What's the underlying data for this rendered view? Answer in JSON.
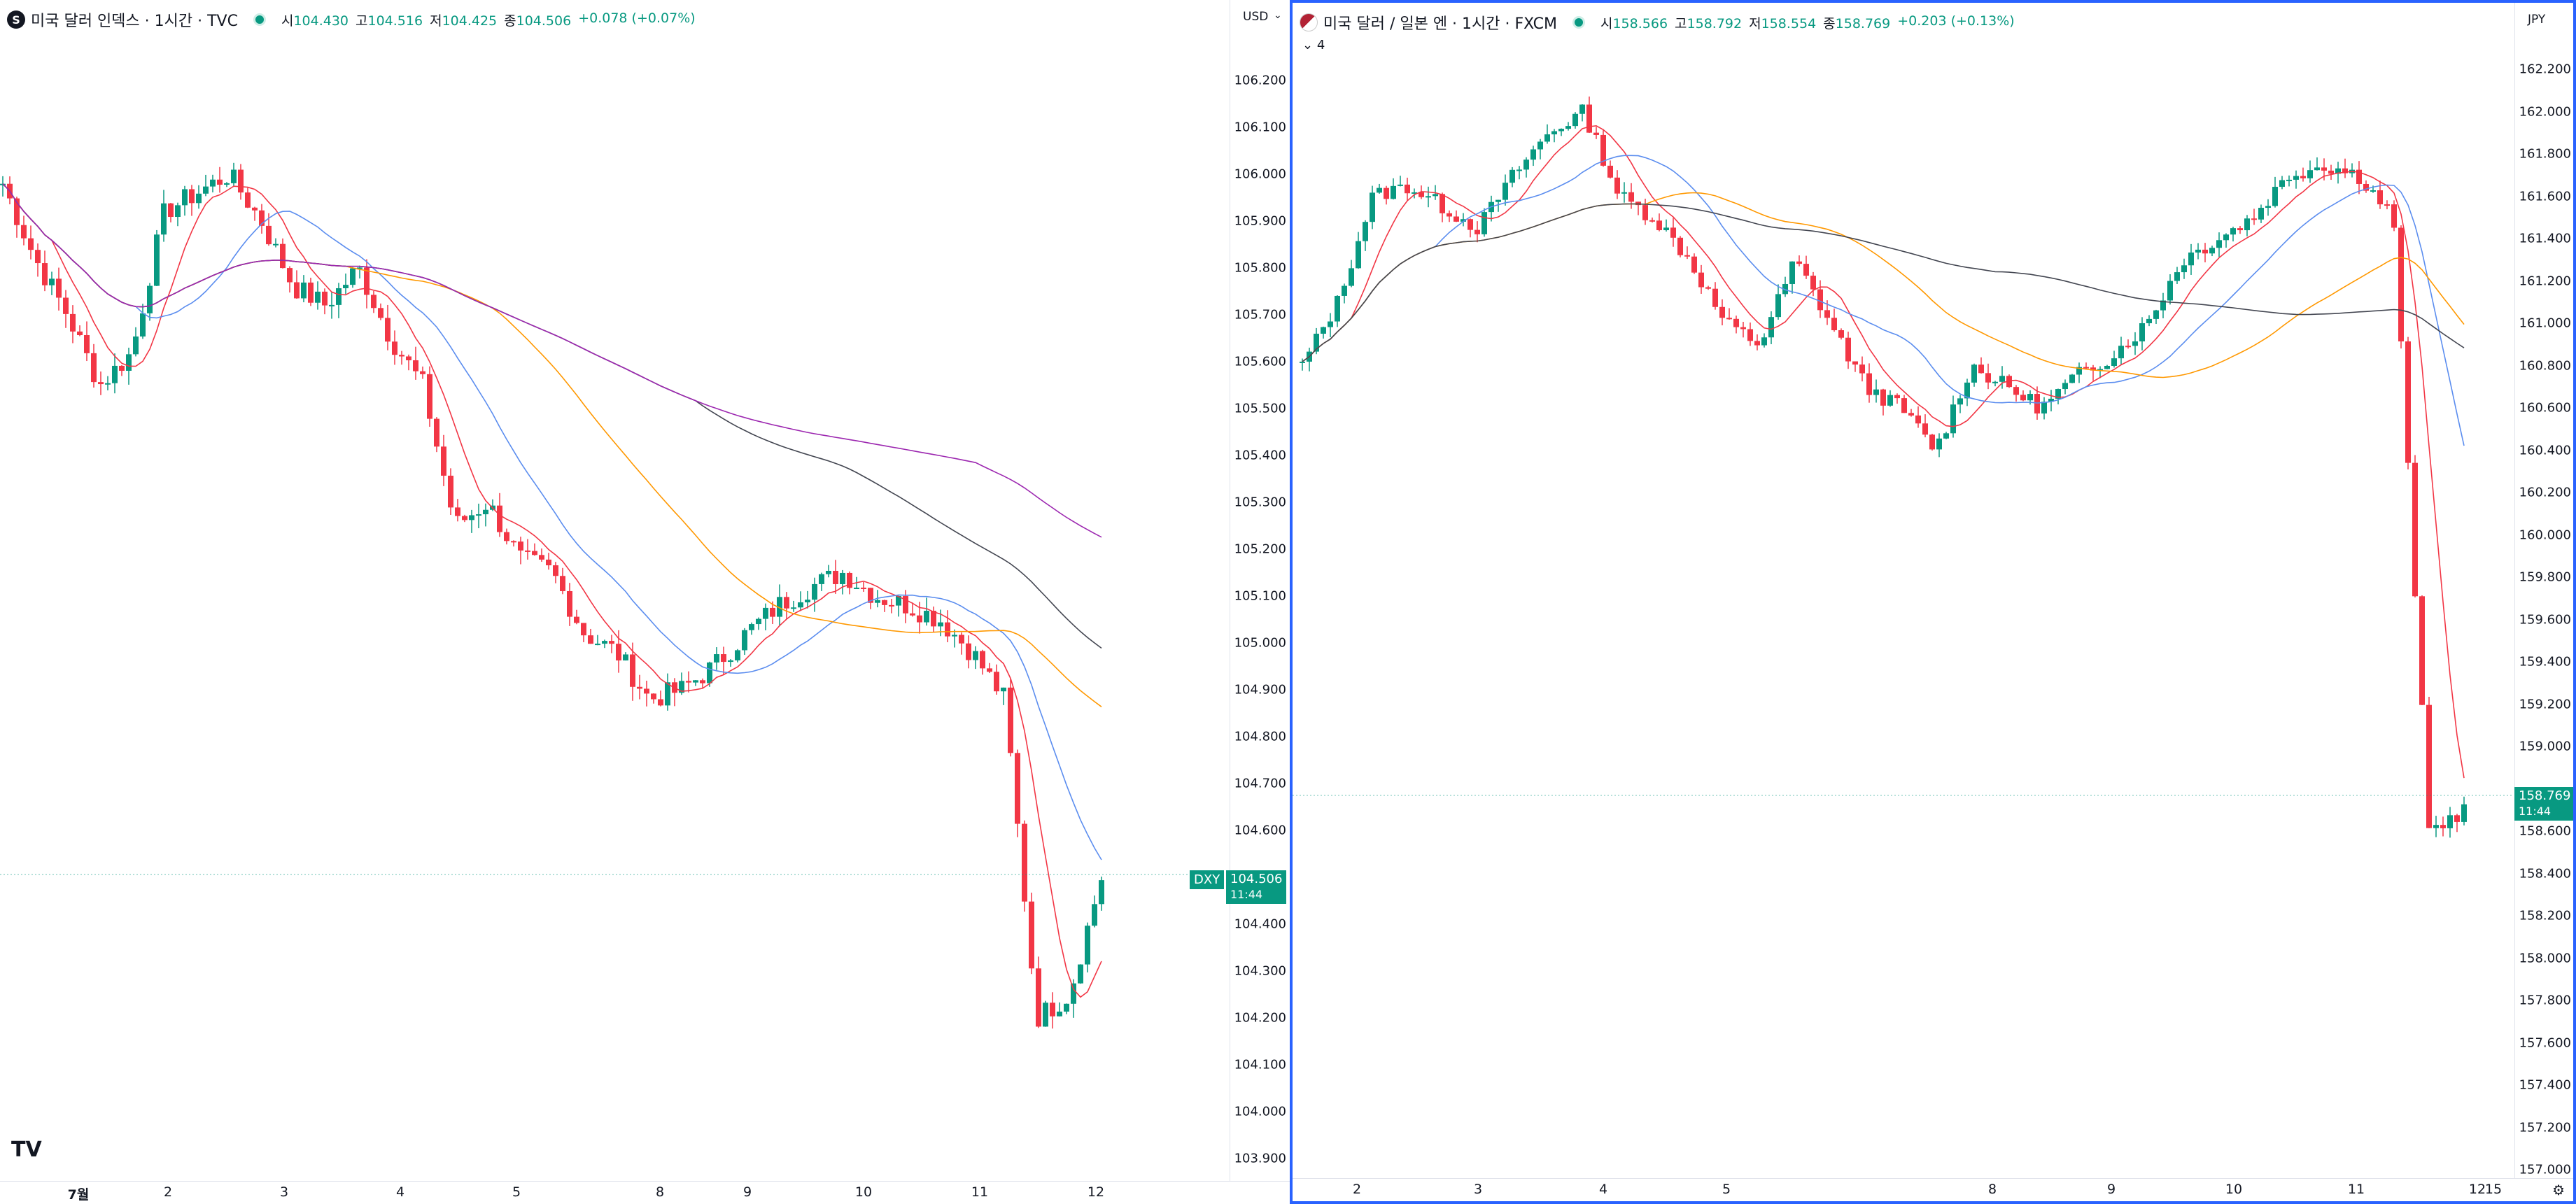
{
  "left": {
    "symbol_badge": "S",
    "title": "미국 달러 인덱스 · 1시간 · TVC",
    "ohlc": {
      "o_label": "시",
      "o": "104.430",
      "h_label": "고",
      "h": "104.516",
      "l_label": "저",
      "l": "104.425",
      "c_label": "종",
      "c": "104.506",
      "change": "+0.078 (+0.07%)"
    },
    "currency": "USD",
    "price_ticks": [
      "106.200",
      "106.100",
      "106.000",
      "105.900",
      "105.800",
      "105.700",
      "105.600",
      "105.500",
      "105.400",
      "105.300",
      "105.200",
      "105.100",
      "105.000",
      "104.900",
      "104.800",
      "104.700",
      "104.600",
      "104.400",
      "104.300",
      "104.200",
      "104.100",
      "104.000",
      "103.900"
    ],
    "last_price": "104.506",
    "countdown": "11:44",
    "symbol_tag": "DXY",
    "time_labels": [
      "7월",
      "2",
      "3",
      "4",
      "5",
      "8",
      "9",
      "10",
      "11",
      "12"
    ],
    "logo": "TV"
  },
  "right": {
    "title": "미국 달러 / 일본 엔 · 1시간 · FXCM",
    "ohlc": {
      "o_label": "시",
      "o": "158.566",
      "h_label": "고",
      "h": "158.792",
      "l_label": "저",
      "l": "158.554",
      "c_label": "종",
      "c": "158.769",
      "change": "+0.203 (+0.13%)"
    },
    "indicator_toggle": "4",
    "currency": "JPY",
    "price_ticks": [
      "162.200",
      "162.000",
      "161.800",
      "161.600",
      "161.400",
      "161.200",
      "161.000",
      "160.800",
      "160.600",
      "160.400",
      "160.200",
      "160.000",
      "159.800",
      "159.600",
      "159.400",
      "159.200",
      "159.000",
      "158.600",
      "158.400",
      "158.200",
      "158.000",
      "157.800",
      "157.600",
      "157.400",
      "157.200",
      "157.000"
    ],
    "last_price": "158.769",
    "countdown": "11:44",
    "time_labels": [
      "2",
      "3",
      "4",
      "5",
      "8",
      "9",
      "10",
      "11",
      "12",
      "15"
    ]
  },
  "colors": {
    "up": "#089981",
    "down": "#f23645",
    "ma_fast": "#f23645",
    "ma_blue": "#5b8def",
    "ma_orange": "#ff9800",
    "ma_black": "#434651",
    "ma_purple": "#9c27b0"
  }
}
